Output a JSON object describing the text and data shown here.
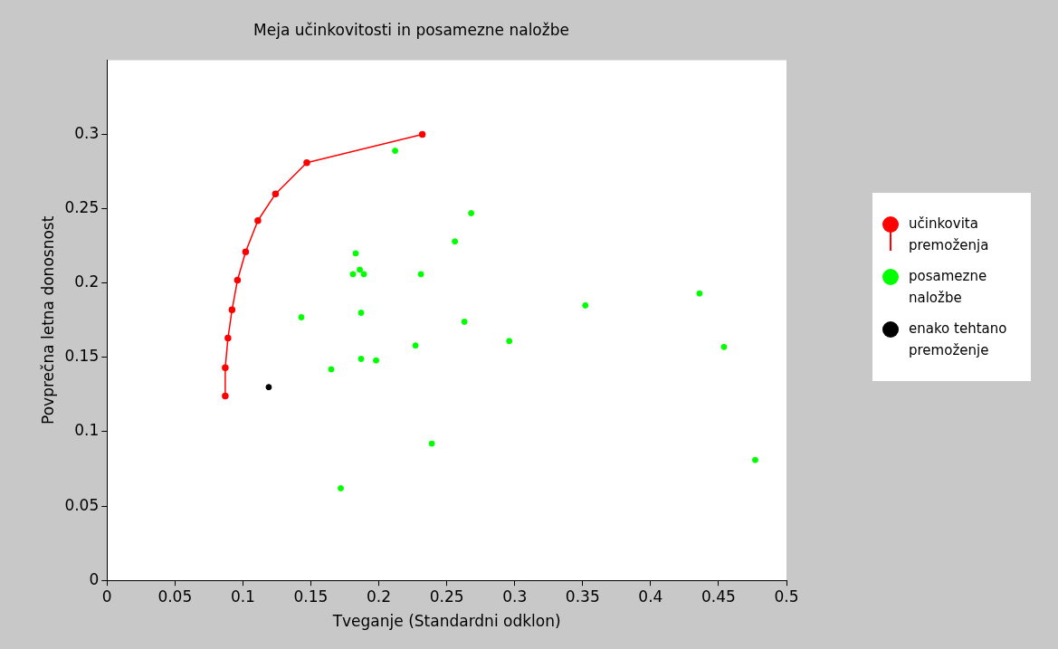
{
  "chart_data": {
    "type": "scatter",
    "title": "Meja učinkovitosti in posamezne naložbe",
    "xlabel": "Tveganje (Standardni odklon)",
    "ylabel": "Povprečna letna donosnost",
    "xlim": [
      0,
      0.5
    ],
    "xticks": [
      0,
      0.05,
      0.1,
      0.15,
      0.2,
      0.25,
      0.3,
      0.35,
      0.4,
      0.45,
      0.5
    ],
    "ylim": [
      0,
      0.35
    ],
    "yticks": [
      0,
      0.05,
      0.1,
      0.15,
      0.2,
      0.25,
      0.3
    ],
    "grid": false,
    "legend": "right",
    "marker": "circle",
    "series": [
      {
        "name": "učinkovita premoženja",
        "type": "line",
        "color": "#ff0000",
        "x": [
          0.087,
          0.087,
          0.089,
          0.092,
          0.096,
          0.102,
          0.111,
          0.124,
          0.147,
          0.232
        ],
        "values": [
          0.124,
          0.143,
          0.163,
          0.182,
          0.202,
          0.221,
          0.242,
          0.26,
          0.281,
          0.3
        ]
      },
      {
        "name": "posamezne naložbe",
        "color": "#00ff00",
        "x": [
          0.212,
          0.268,
          0.256,
          0.183,
          0.186,
          0.181,
          0.189,
          0.231,
          0.143,
          0.187,
          0.263,
          0.352,
          0.436,
          0.296,
          0.227,
          0.454,
          0.187,
          0.198,
          0.165,
          0.239,
          0.477,
          0.172
        ],
        "values": [
          0.289,
          0.247,
          0.228,
          0.22,
          0.209,
          0.206,
          0.206,
          0.206,
          0.177,
          0.18,
          0.174,
          0.185,
          0.193,
          0.161,
          0.158,
          0.157,
          0.149,
          0.148,
          0.142,
          0.092,
          0.081,
          0.062
        ]
      },
      {
        "name": "enako tehtano premoženje",
        "color": "#000000",
        "x": [
          0.119
        ],
        "values": [
          0.13
        ]
      }
    ]
  }
}
